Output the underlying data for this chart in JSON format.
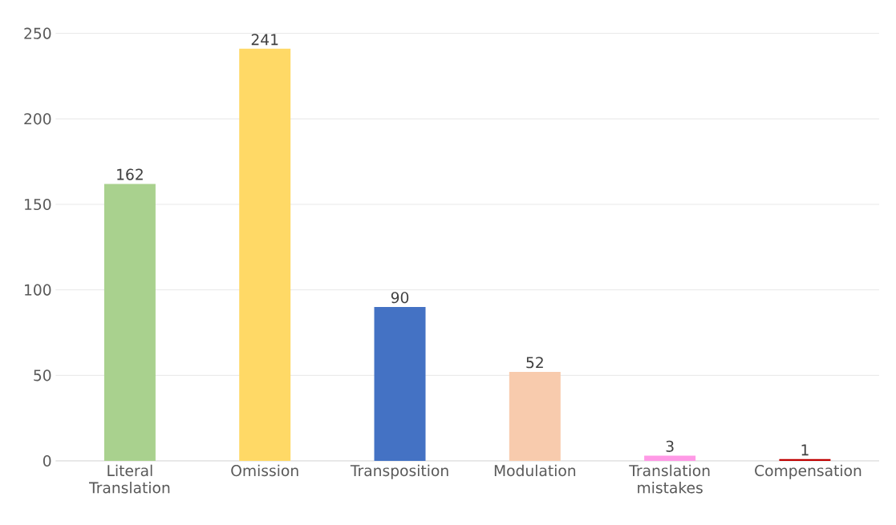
{
  "chart_data": {
    "type": "bar",
    "categories": [
      "Literal Translation",
      "Omission",
      "Transposition",
      "Modulation",
      "Translation mistakes",
      "Compensation"
    ],
    "values": [
      162,
      241,
      90,
      52,
      3,
      1
    ],
    "colors": [
      "#a9d18e",
      "#ffd966",
      "#4472c4",
      "#f8cbad",
      "#ff99e6",
      "#c00000"
    ],
    "ylim": [
      0,
      250
    ],
    "yticks": [
      0,
      50,
      100,
      150,
      200,
      250
    ],
    "grid": "y",
    "data_labels": true
  }
}
